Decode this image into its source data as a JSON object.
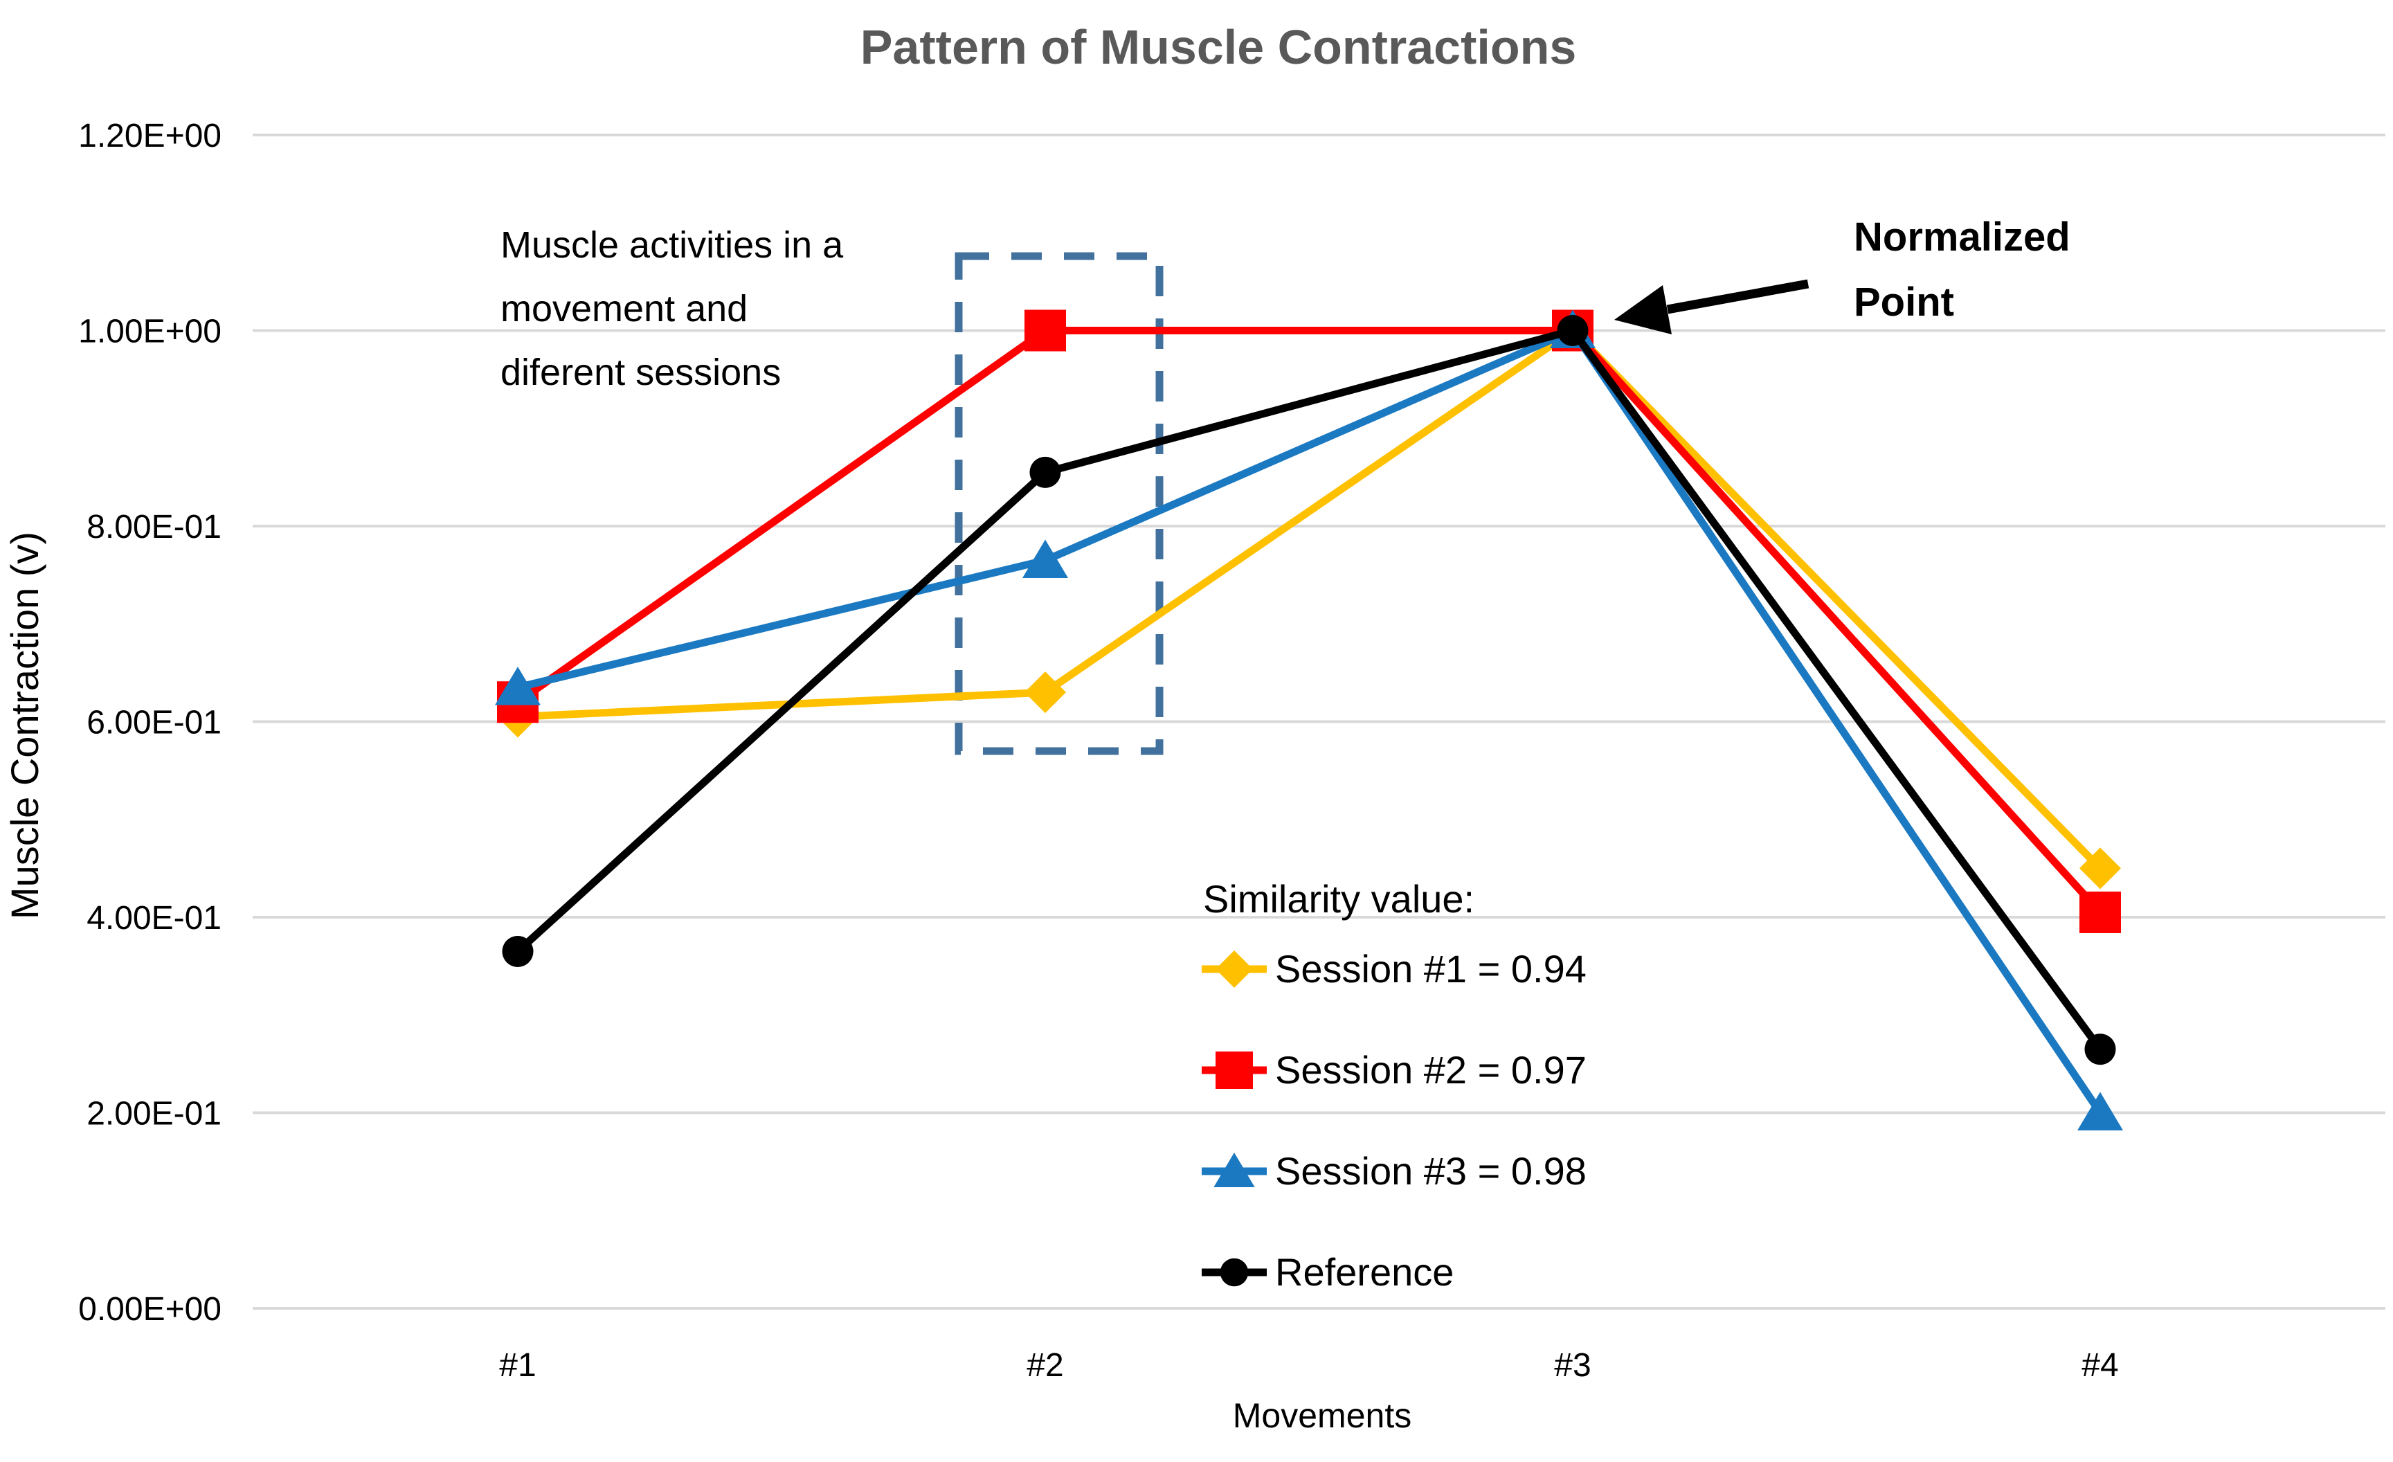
{
  "title": "Pattern of Muscle Contractions",
  "colors": {
    "session1": "#FFC000",
    "session2": "#FF0000",
    "session3": "#1B79C2",
    "reference": "#000000",
    "grid": "#D9D9D9",
    "title_text": "#595959",
    "dashed_box": "#41719C",
    "background": "#FFFFFF"
  },
  "y_axis": {
    "title": "Muscle Contraction (v)"
  },
  "x_axis": {
    "title": "Movements"
  },
  "annotations": {
    "muscle_note": {
      "lines": [
        "Muscle activities in a",
        "movement and",
        "diferent sessions"
      ]
    },
    "normalized_point": {
      "lines": [
        "Normalized",
        "Point"
      ]
    }
  },
  "legend": {
    "heading": "Similarity value:",
    "position": "inside lower right",
    "items": [
      {
        "label": "Session #1 = 0.94",
        "marker": "diamond",
        "color": "#FFC000"
      },
      {
        "label": "Session #2 = 0.97",
        "marker": "square",
        "color": "#FF0000"
      },
      {
        "label": "Session #3 = 0.98",
        "marker": "triangle",
        "color": "#1B79C2"
      },
      {
        "label": "Reference",
        "marker": "circle",
        "color": "#000000"
      }
    ]
  },
  "chart_data": {
    "type": "line",
    "title": "Pattern of Muscle Contractions",
    "xlabel": "Movements",
    "ylabel": "Muscle Contraction (v)",
    "categories": [
      "#1",
      "#2",
      "#3",
      "#4"
    ],
    "series": [
      {
        "name": "Session #1 = 0.94",
        "marker": "diamond",
        "color": "#FFC000",
        "values": [
          0.605,
          0.63,
          1.0,
          0.45
        ]
      },
      {
        "name": "Session #2 = 0.97",
        "marker": "square",
        "color": "#FF0000",
        "values": [
          0.62,
          1.0,
          1.0,
          0.405
        ]
      },
      {
        "name": "Session #3 = 0.98",
        "marker": "triangle",
        "color": "#1B79C2",
        "values": [
          0.635,
          0.765,
          1.0,
          0.2
        ]
      },
      {
        "name": "Reference",
        "marker": "circle",
        "color": "#000000",
        "values": [
          0.365,
          0.855,
          1.0,
          0.265
        ]
      }
    ],
    "ylim": [
      0,
      1.2
    ],
    "y_tick_values": [
      0,
      0.2,
      0.4,
      0.6,
      0.8,
      1.0,
      1.2
    ],
    "y_tick_labels": [
      "0.00E+00",
      "2.00E-01",
      "4.00E-01",
      "6.00E-01",
      "8.00E-01",
      "1.00E+00",
      "1.20E+00"
    ],
    "grid": true,
    "legend_position": "inside lower right",
    "highlighted_category": "#2",
    "normalized_category": "#3"
  }
}
